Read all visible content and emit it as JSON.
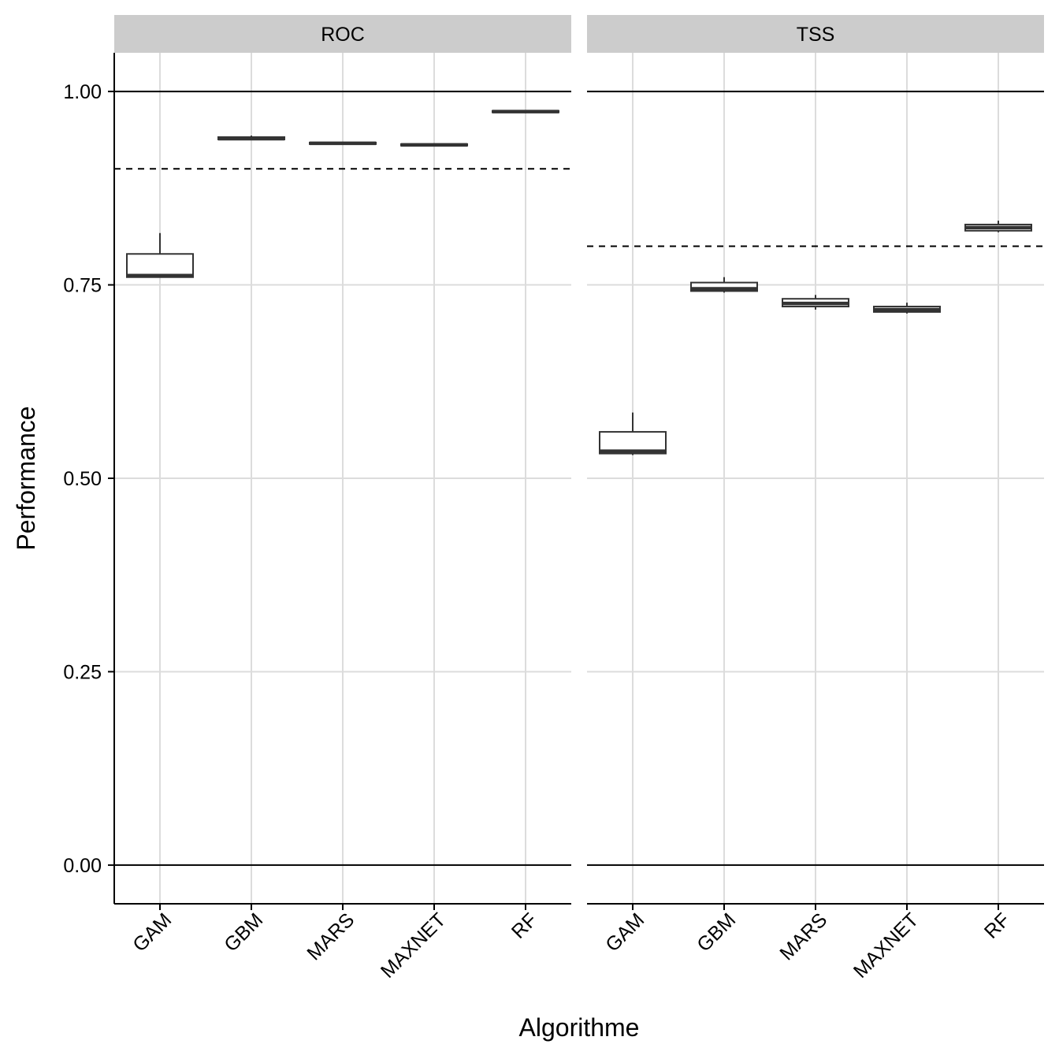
{
  "chart_data": {
    "type": "boxplot",
    "xlabel": "Algorithme",
    "ylabel": "Performance",
    "ylim": [
      -0.05,
      1.05
    ],
    "yticks": [
      0,
      0.25,
      0.5,
      0.75,
      1.0
    ],
    "ytick_labels": [
      "0.00",
      "0.25",
      "0.50",
      "0.75",
      "1.00"
    ],
    "grid": true,
    "categories": [
      "GAM",
      "GBM",
      "MARS",
      "MAXNET",
      "RF"
    ],
    "reference_lines": [
      0,
      1
    ],
    "facets": [
      {
        "label": "ROC",
        "threshold": 0.9,
        "boxes": [
          {
            "category": "GAM",
            "min": 0.76,
            "q1": 0.76,
            "median": 0.762,
            "q3": 0.79,
            "max": 0.817
          },
          {
            "category": "GBM",
            "min": 0.937,
            "q1": 0.938,
            "median": 0.939,
            "q3": 0.941,
            "max": 0.943
          },
          {
            "category": "MARS",
            "min": 0.931,
            "q1": 0.932,
            "median": 0.933,
            "q3": 0.934,
            "max": 0.935
          },
          {
            "category": "MAXNET",
            "min": 0.929,
            "q1": 0.93,
            "median": 0.931,
            "q3": 0.932,
            "max": 0.933
          },
          {
            "category": "RF",
            "min": 0.972,
            "q1": 0.973,
            "median": 0.974,
            "q3": 0.975,
            "max": 0.976
          }
        ]
      },
      {
        "label": "TSS",
        "threshold": 0.8,
        "boxes": [
          {
            "category": "GAM",
            "min": 0.53,
            "q1": 0.532,
            "median": 0.535,
            "q3": 0.56,
            "max": 0.585
          },
          {
            "category": "GBM",
            "min": 0.74,
            "q1": 0.742,
            "median": 0.745,
            "q3": 0.753,
            "max": 0.76
          },
          {
            "category": "MARS",
            "min": 0.718,
            "q1": 0.722,
            "median": 0.726,
            "q3": 0.732,
            "max": 0.737
          },
          {
            "category": "MAXNET",
            "min": 0.713,
            "q1": 0.715,
            "median": 0.718,
            "q3": 0.722,
            "max": 0.727
          },
          {
            "category": "RF",
            "min": 0.818,
            "q1": 0.82,
            "median": 0.824,
            "q3": 0.828,
            "max": 0.833
          }
        ]
      }
    ]
  }
}
